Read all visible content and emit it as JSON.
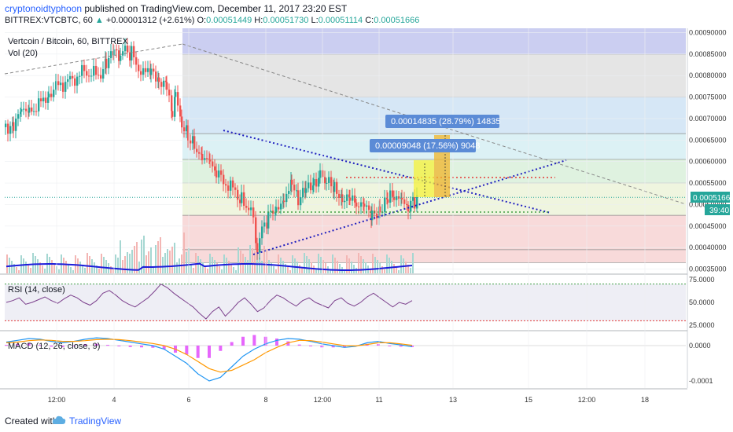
{
  "header": {
    "author": "cryptonoidtyphoon",
    "published": "published on TradingView.com, December 11, 2017 23:20 EST",
    "symbol": "BITTREX:VTCBTC, 60",
    "change_arrow": "▲",
    "change": "+0.00001312 (+2.61%)",
    "open_label": "O:",
    "open": "0.00051449",
    "high_label": "H:",
    "high": "0.00051730",
    "low_label": "L:",
    "low": "0.00051114",
    "close_label": "C:",
    "close": "0.00051666"
  },
  "footer": {
    "created": "Created with",
    "brand": "TradingView"
  },
  "colors": {
    "up": "#26a69a",
    "down": "#ef5350",
    "volume_ma": "#1d1ddb",
    "rsi": "#7b3f8c",
    "macd": "#2196f3",
    "signal": "#ff9800",
    "hist": "#e040fb",
    "trendline": "#1f1fbf"
  },
  "chart_data": [
    {
      "type": "candlestick",
      "title": "Vertcoin / Bitcoin, 60, BITTREX",
      "volume_label": "Vol (20)",
      "y_ticks": [
        "0.00090000",
        "0.00085000",
        "0.00080000",
        "0.00075000",
        "0.00070000",
        "0.00065000",
        "0.00060000",
        "0.00055000",
        "0.00050000",
        "0.00045000",
        "0.00040000",
        "0.00035000"
      ],
      "ylim": [
        0.00034,
        0.00091
      ],
      "x_ticks": [
        "12:00",
        "4",
        "6",
        "8",
        "12:00",
        "11",
        "13",
        "15",
        "12:00",
        "18"
      ],
      "last_price": "0.00051666",
      "countdown": "39:40",
      "path_points": [
        [
          0,
          0.00068
        ],
        [
          10,
          0.00069
        ],
        [
          20,
          0.00071
        ],
        [
          30,
          0.00072
        ],
        [
          42,
          0.00073
        ],
        [
          55,
          0.00076
        ],
        [
          70,
          0.00078
        ],
        [
          85,
          0.00079
        ],
        [
          100,
          0.00081
        ],
        [
          118,
          0.0008
        ],
        [
          128,
          0.00083
        ],
        [
          138,
          0.00085
        ],
        [
          146,
          0.00084
        ],
        [
          152,
          0.00086
        ],
        [
          160,
          0.00085
        ],
        [
          166,
          0.00083
        ],
        [
          175,
          0.0008
        ],
        [
          185,
          0.00082
        ],
        [
          195,
          0.00079
        ],
        [
          205,
          0.00077
        ],
        [
          212,
          0.0007
        ],
        [
          216,
          0.00075
        ],
        [
          224,
          0.00068
        ],
        [
          232,
          0.00066
        ],
        [
          240,
          0.00064
        ],
        [
          250,
          0.00061
        ],
        [
          260,
          0.00059
        ],
        [
          268,
          0.00057
        ],
        [
          280,
          0.00055
        ],
        [
          292,
          0.00053
        ],
        [
          300,
          0.00051
        ],
        [
          312,
          0.00049
        ],
        [
          320,
          0.00039
        ],
        [
          326,
          0.00044
        ],
        [
          334,
          0.00047
        ],
        [
          344,
          0.00049
        ],
        [
          354,
          0.00052
        ],
        [
          364,
          0.00054
        ],
        [
          372,
          0.00051
        ],
        [
          382,
          0.00053
        ],
        [
          392,
          0.00055
        ],
        [
          400,
          0.00057
        ],
        [
          408,
          0.00055
        ],
        [
          418,
          0.00054
        ],
        [
          428,
          0.00052
        ],
        [
          438,
          0.00051
        ],
        [
          446,
          0.0005
        ],
        [
          456,
          0.00049
        ],
        [
          466,
          0.00048
        ],
        [
          476,
          0.00049
        ],
        [
          486,
          0.00051
        ],
        [
          494,
          0.00052
        ],
        [
          504,
          0.0005
        ],
        [
          512,
          0.00049
        ],
        [
          520,
          0.00051
        ],
        [
          524,
          0.000517
        ]
      ],
      "fib_levels": [
        0.00085,
        0.00075,
        0.000665,
        0.000605,
        0.00055,
        0.000475,
        0.000395,
        0.000365
      ],
      "annotations": [
        {
          "text": "0.00014835 (28.79%) 14835"
        },
        {
          "text": "0.00009048 (17.56%) 9048"
        }
      ]
    },
    {
      "type": "line",
      "title": "RSI (14, close)",
      "y_ticks": [
        "75.0000",
        "50.0000",
        "25.0000"
      ],
      "ylim": [
        20,
        80
      ],
      "levels": [
        70,
        30
      ],
      "values": [
        50,
        52,
        55,
        48,
        50,
        53,
        56,
        52,
        49,
        54,
        58,
        55,
        50,
        47,
        52,
        60,
        63,
        58,
        52,
        48,
        45,
        50,
        55,
        62,
        70,
        66,
        60,
        55,
        50,
        45,
        38,
        32,
        40,
        45,
        35,
        42,
        50,
        55,
        48,
        40,
        44,
        52,
        58,
        55,
        50,
        46,
        52,
        55,
        50,
        47,
        44,
        52,
        55,
        49,
        46,
        50,
        56,
        60,
        55,
        50,
        45,
        50,
        48,
        52
      ]
    },
    {
      "type": "line",
      "title": "MACD (12, 26, close, 9)",
      "y_ticks": [
        "0.0000",
        "-0.0001"
      ],
      "ylim": [
        -0.00012,
        4e-05
      ],
      "macd": [
        1e-05,
        1.5e-05,
        2e-05,
        1.8e-05,
        1.2e-05,
        8e-06,
        1.2e-05,
        1.8e-05,
        2.2e-05,
        2e-05,
        1.5e-05,
        1e-05,
        5e-06,
        0.0,
        -1e-05,
        -3e-05,
        -5e-05,
        -8e-05,
        -0.0001,
        -9e-05,
        -6e-05,
        -3e-05,
        -1e-05,
        5e-06,
        1.5e-05,
        2e-05,
        1.8e-05,
        1.2e-05,
        5e-06,
        0.0,
        -5e-06,
        -2e-06,
        8e-06,
        1.2e-05,
        6e-06,
        2e-06,
        -3e-06
      ],
      "signal": [
        8e-06,
        1e-05,
        1.4e-05,
        1.6e-05,
        1.5e-05,
        1.2e-05,
        1.2e-05,
        1.4e-05,
        1.7e-05,
        1.8e-05,
        1.7e-05,
        1.4e-05,
        1e-05,
        6e-06,
        0.0,
        -1e-05,
        -2.5e-05,
        -4.5e-05,
        -6.5e-05,
        -7.5e-05,
        -7e-05,
        -5.5e-05,
        -4e-05,
        -2e-05,
        -5e-06,
        8e-06,
        1.5e-05,
        1.4e-05,
        1e-05,
        5e-06,
        0.0,
        -1e-06,
        3e-06,
        8e-06,
        8e-06,
        5e-06,
        1e-06
      ]
    }
  ]
}
